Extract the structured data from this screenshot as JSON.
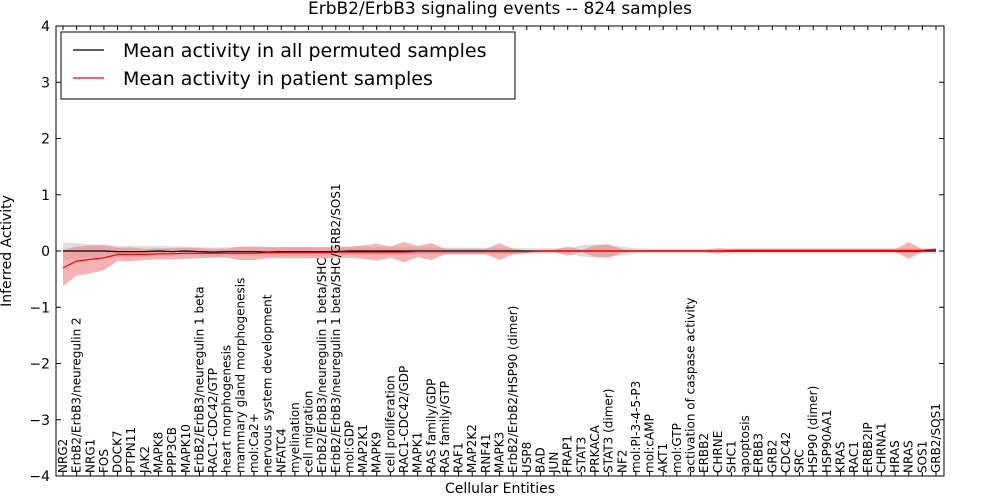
{
  "chart_data": {
    "type": "line",
    "title": "ErbB2/ErbB3 signaling events -- 824 samples",
    "xlabel": "Cellular Entities",
    "ylabel": "Inferred Activity",
    "ylim": [
      -4,
      4
    ],
    "yticks": [
      -4,
      -3,
      -2,
      -1,
      0,
      1,
      2,
      3,
      4
    ],
    "ytick_labels": [
      "−4",
      "−3",
      "−2",
      "−1",
      "0",
      "1",
      "2",
      "3",
      "4"
    ],
    "legend_position": "top-left",
    "colors": {
      "permuted": "#000000",
      "patient": "#ff0000",
      "patient_band": "#f08080",
      "permuted_band": "#c8c8c8"
    },
    "categories": [
      "NRG2",
      "ErbB2/ErbB3/neuregulin 2",
      "NRG1",
      "FOS",
      "DOCK7",
      "PTPN11",
      "JAK2",
      "MAPK8",
      "PPP3CB",
      "MAPK10",
      "ErbB2/ErbB3/neuregulin 1 beta",
      "RAC1-CDC42/GTP",
      "heart morphogenesis",
      "mammary gland morphogenesis",
      "mol:Ca2+",
      "nervous system development",
      "NFATC4",
      "myelination",
      "cell migration",
      "ErbB2/ErbB3/neuregulin 1 beta/SHC",
      "ErbB2/ErbB3/neuregulin 1 beta/SHC/GRB2/SOS1",
      "mol:GDP",
      "MAP2K1",
      "MAPK9",
      "cell proliferation",
      "RAC1-CDC42/GDP",
      "MAPK1",
      "RAS family/GDP",
      "RAS family/GTP",
      "RAF1",
      "MAP2K2",
      "RNF41",
      "MAPK3",
      "ErbB2/ErbB2/HSP90 (dimer)",
      "USP8",
      "BAD",
      "JUN",
      "FRAP1",
      "STAT3",
      "PRKACA",
      "STAT3 (dimer)",
      "NF2",
      "mol:PI-3-4-5-P3",
      "mol:cAMP",
      "AKT1",
      "mol:GTP",
      "activation of caspase activity",
      "ERBB2",
      "CHRNE",
      "SHC1",
      "apoptosis",
      "ERBB3",
      "GRB2",
      "CDC42",
      "SRC",
      "HSP90 (dimer)",
      "HSP90AA1",
      "KRAS",
      "RAC1",
      "ERBB2IP",
      "CHRNA1",
      "HRAS",
      "NRAS",
      "SOS1",
      "GRB2/SOS1"
    ],
    "series": [
      {
        "name": "Mean activity in all permuted samples",
        "values": [
          0,
          0,
          0,
          0,
          -0.01,
          -0.01,
          -0.01,
          0,
          -0.01,
          0,
          -0.01,
          -0.02,
          -0.01,
          -0.01,
          -0.01,
          -0.02,
          -0.01,
          -0.01,
          -0.01,
          -0.01,
          -0.01,
          0,
          0,
          0,
          0,
          0,
          0,
          0,
          0,
          0,
          0,
          0,
          0,
          0,
          0,
          0,
          0,
          0,
          0,
          0,
          0,
          0,
          0,
          0,
          0,
          0,
          0,
          0,
          0,
          0,
          0,
          0,
          0,
          0,
          0,
          0,
          0,
          0,
          0,
          0,
          0,
          0,
          0,
          0,
          0
        ],
        "band": [
          0.15,
          0.14,
          0.12,
          0.12,
          0.1,
          0.1,
          0.1,
          0.09,
          0.09,
          0.08,
          0.08,
          0.08,
          0.08,
          0.08,
          0.08,
          0.08,
          0.08,
          0.08,
          0.08,
          0.07,
          0.07,
          0.07,
          0.07,
          0.07,
          0.07,
          0.07,
          0.06,
          0.06,
          0.06,
          0.06,
          0.06,
          0.06,
          0.06,
          0.06,
          0.05,
          0.05,
          0.05,
          0.05,
          0.1,
          0.12,
          0.1,
          0.08,
          0.05,
          0.04,
          0.04,
          0.04,
          0.04,
          0.04,
          0.04,
          0.05,
          0.05,
          0.05,
          0.05,
          0.05,
          0.05,
          0.05,
          0.05,
          0.05,
          0.05,
          0.05,
          0.05,
          0.05,
          0.05,
          0.05,
          0.05
        ]
      },
      {
        "name": "Mean activity in patient samples",
        "values": [
          -0.3,
          -0.18,
          -0.15,
          -0.12,
          -0.06,
          -0.06,
          -0.06,
          -0.05,
          -0.05,
          -0.04,
          -0.04,
          -0.04,
          -0.04,
          -0.04,
          -0.04,
          -0.03,
          -0.03,
          -0.03,
          -0.03,
          -0.03,
          -0.02,
          -0.02,
          -0.02,
          -0.02,
          -0.02,
          -0.02,
          -0.01,
          -0.01,
          -0.01,
          -0.01,
          -0.01,
          -0.01,
          -0.01,
          -0.01,
          -0.01,
          0,
          0,
          0,
          0,
          0,
          0,
          0,
          0,
          0,
          0,
          0,
          0,
          0,
          0,
          0.01,
          0.01,
          0.01,
          0.01,
          0.01,
          0.01,
          0.01,
          0.01,
          0.01,
          0.01,
          0.01,
          0.01,
          0.01,
          0.01,
          0.01,
          0.03
        ],
        "band": [
          0.32,
          0.26,
          0.25,
          0.22,
          0.12,
          0.12,
          0.1,
          0.1,
          0.1,
          0.1,
          0.09,
          0.08,
          0.08,
          0.12,
          0.12,
          0.1,
          0.1,
          0.1,
          0.1,
          0.1,
          0.1,
          0.1,
          0.12,
          0.15,
          0.1,
          0.18,
          0.1,
          0.15,
          0.05,
          0.05,
          0.05,
          0.05,
          0.15,
          0.05,
          0.02,
          0.02,
          0.02,
          0.08,
          0.02,
          0.1,
          0.12,
          0.03,
          0.02,
          0.02,
          0.02,
          0.02,
          0.02,
          0.02,
          0.05,
          0.02,
          0.02,
          0.02,
          0.02,
          0.02,
          0.02,
          0.02,
          0.02,
          0.02,
          0.02,
          0.02,
          0.02,
          0.02,
          0.15,
          0.02,
          0.02
        ]
      }
    ]
  }
}
